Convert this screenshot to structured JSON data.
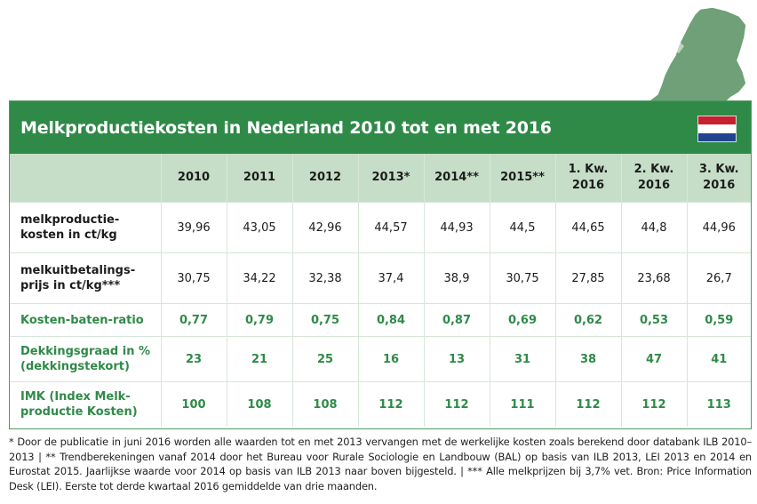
{
  "title": "Melkproductiekosten in Nederland 2010 tot en met 2016",
  "columns": [
    [
      "2010"
    ],
    [
      "2011"
    ],
    [
      "2012"
    ],
    [
      "2013*"
    ],
    [
      "2014**"
    ],
    [
      "2015**"
    ],
    [
      "1. Kw.",
      "2016"
    ],
    [
      "2. Kw.",
      "2016"
    ],
    [
      "3. Kw.",
      "2016"
    ]
  ],
  "rows": [
    {
      "label": [
        "melkproductie-",
        "kosten in ct/kg"
      ],
      "style": "black",
      "height": "h56",
      "values": [
        "39,96",
        "43,05",
        "42,96",
        "44,57",
        "44,93",
        "44,5",
        "44,65",
        "44,8",
        "44,96"
      ]
    },
    {
      "label": [
        "melkuitbetalings-",
        "prijs in ct/kg***"
      ],
      "style": "black",
      "height": "h56",
      "values": [
        "30,75",
        "34,22",
        "32,38",
        "37,4",
        "38,9",
        "30,75",
        "27,85",
        "23,68",
        "26,7"
      ]
    },
    {
      "label": [
        "Kosten-baten-ratio"
      ],
      "style": "green",
      "height": "h36",
      "values": [
        "0,77",
        "0,79",
        "0,75",
        "0,84",
        "0,87",
        "0,69",
        "0,62",
        "0,53",
        "0,59"
      ]
    },
    {
      "label": [
        "Dekkingsgraad in %",
        "(dekkingstekort)"
      ],
      "style": "green",
      "height": "h48",
      "values": [
        "23",
        "21",
        "25",
        "16",
        "13",
        "31",
        "38",
        "47",
        "41"
      ]
    },
    {
      "label": [
        "IMK (Index Melk-",
        "productie Kosten)"
      ],
      "style": "green",
      "height": "h48",
      "values": [
        "100",
        "108",
        "108",
        "112",
        "112",
        "111",
        "112",
        "112",
        "113"
      ]
    }
  ],
  "footnote": "* Door de publicatie in juni 2016 worden alle waarden tot en met 2013 vervangen met de werkelijke kosten zoals berekend door databank ILB 2010–2013 | ** Trendberekeningen vanaf 2014 door het Bureau voor Rurale Sociologie en Landbouw (BAL) op basis van ILB 2013, LEI 2013 en 2014 en Eurostat 2015. Jaarlijkse waarde voor 2014 op basis van ILB 2013 naar boven bijgesteld. | *** Alle melkprijzen bij 3,7% vet. Bron: Price Information Desk (LEI). Eerste tot derde kwartaal 2016 gemiddelde van drie maanden.",
  "colors": {
    "green": "#2f8a48",
    "header_bg": "#c6dec7",
    "map": "#6fa077"
  },
  "icons": {
    "map": "netherlands-map-icon",
    "flag": "dutch-flag-icon"
  }
}
